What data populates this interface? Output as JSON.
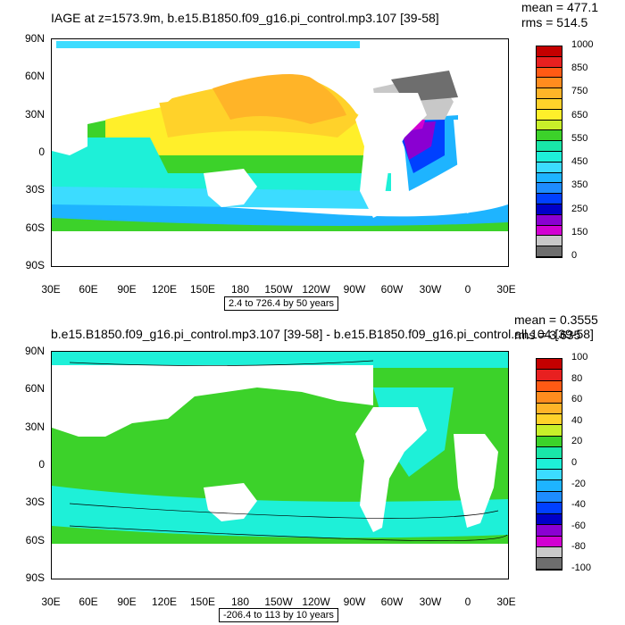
{
  "panel1": {
    "title": "IAGE at z=1573.9m, b.e15.B1850.f09_g16.pi_control.mp3.107 [39-58]",
    "mean": "mean = 477.1",
    "rms": "rms = 514.5",
    "range": "2.4 to 726.4 by 50 years",
    "lat_ticks": [
      "90N",
      "60N",
      "30N",
      "0",
      "30S",
      "60S",
      "90S"
    ],
    "lon_ticks": [
      "30E",
      "60E",
      "90E",
      "120E",
      "150E",
      "180",
      "150W",
      "120W",
      "90W",
      "60W",
      "30W",
      "0",
      "30E"
    ],
    "legend_labels": [
      "1000",
      "850",
      "750",
      "650",
      "550",
      "450",
      "350",
      "250",
      "150",
      "0"
    ],
    "legend_colors": [
      "#c40000",
      "#e82020",
      "#ff5a14",
      "#ff8c1e",
      "#ffb428",
      "#ffd22a",
      "#ffef2a",
      "#c8f02a",
      "#3cd22a",
      "#19e6a8",
      "#1ef0d8",
      "#3cdcff",
      "#1eb4ff",
      "#1e8cff",
      "#0040ff",
      "#0000c8",
      "#8a00d2",
      "#d200d2",
      "#c8c8c8",
      "#6e6e6e"
    ]
  },
  "panel2": {
    "title": "b.e15.B1850.f09_g16.pi_control.mp3.107 [39-58] - b.e15.B1850.f09_g16.pi_control.all.104 [39-58]",
    "mean": "mean = 0.3555",
    "rms": "rms = 3.635",
    "range": "-206.4 to 113 by 10 years",
    "lat_ticks": [
      "90N",
      "60N",
      "30N",
      "0",
      "30S",
      "60S",
      "90S"
    ],
    "lon_ticks": [
      "30E",
      "60E",
      "90E",
      "120E",
      "150E",
      "180",
      "150W",
      "120W",
      "90W",
      "60W",
      "30W",
      "0",
      "30E"
    ],
    "legend_labels": [
      "100",
      "80",
      "60",
      "40",
      "20",
      "0",
      "-20",
      "-40",
      "-60",
      "-80",
      "-100"
    ],
    "legend_colors": [
      "#c40000",
      "#e82020",
      "#ff5a14",
      "#ff8c1e",
      "#ffb428",
      "#ffd22a",
      "#c8f02a",
      "#3cd22a",
      "#19e6a8",
      "#1ef0d8",
      "#3cdcff",
      "#1eb4ff",
      "#1e8cff",
      "#0040ff",
      "#0000c8",
      "#8a00d2",
      "#d200d2",
      "#c8c8c8",
      "#6e6e6e"
    ]
  }
}
